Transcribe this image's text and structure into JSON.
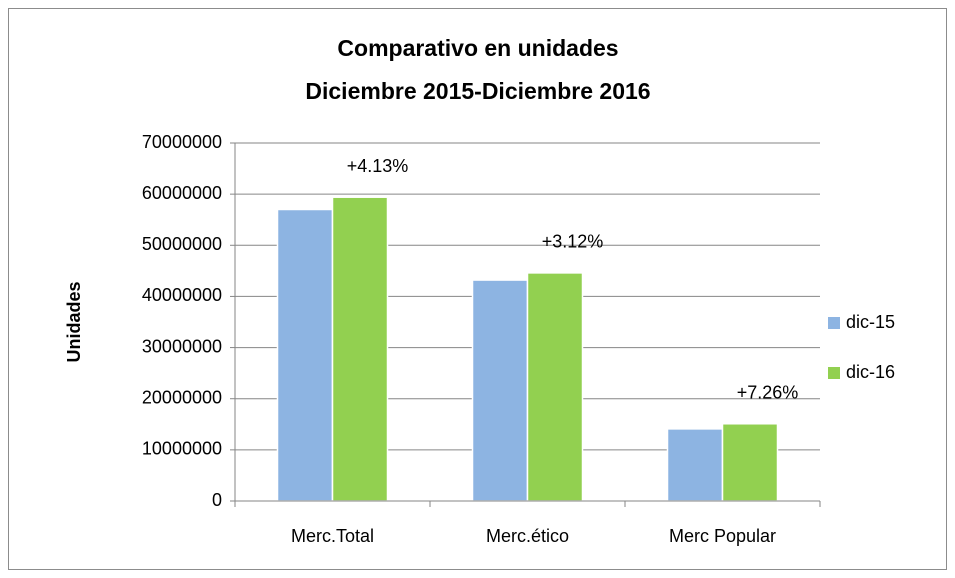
{
  "chart_data": {
    "type": "bar",
    "title": [
      "Comparativo en unidades",
      "Diciembre 2015-Diciembre 2016"
    ],
    "y_label": "Unidades",
    "categories": [
      "Merc.Total",
      "Merc.ético",
      "Merc Popular"
    ],
    "series": [
      {
        "name": "dic-15",
        "color": "#8db4e2",
        "values": [
          57000000,
          43200000,
          14100000
        ]
      },
      {
        "name": "dic-16",
        "color": "#92d050",
        "values": [
          59400000,
          44600000,
          15100000
        ]
      }
    ],
    "annotations": [
      "+4.13%",
      "+3.12%",
      "+7.26%"
    ],
    "ylim": [
      0,
      70000000
    ],
    "yticks": [
      0,
      10000000,
      20000000,
      30000000,
      40000000,
      50000000,
      60000000,
      70000000
    ],
    "grid": true,
    "legend": "right"
  }
}
